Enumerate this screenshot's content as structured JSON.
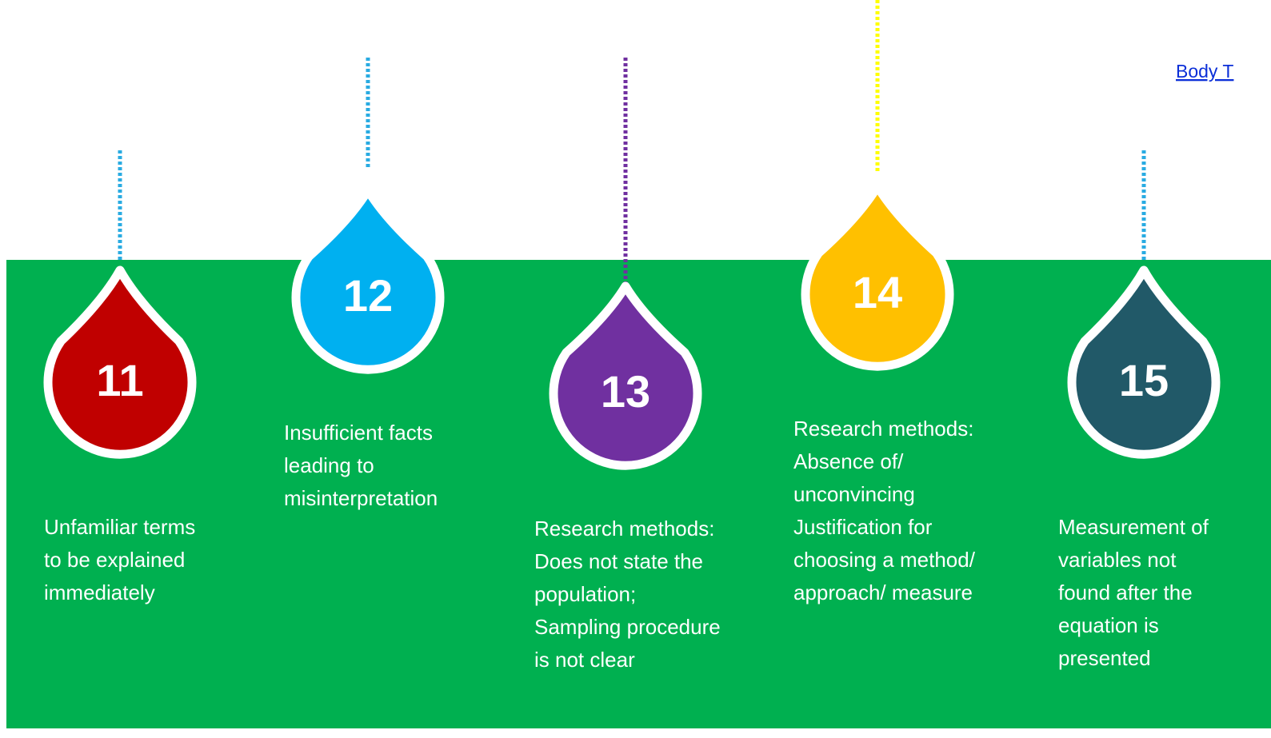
{
  "link": "Body T",
  "items": [
    {
      "number": "11",
      "lines": [
        "Unfamiliar terms",
        "to be explained",
        "immediately"
      ]
    },
    {
      "number": "12",
      "lines": [
        "Insufficient facts",
        "leading to",
        "misinterpretation"
      ]
    },
    {
      "number": "13",
      "lines": [
        "Research methods:",
        "Does not state the",
        "population;",
        "Sampling procedure",
        "is not clear"
      ]
    },
    {
      "number": "14",
      "lines": [
        "Research methods:",
        "Absence of/",
        "unconvincing",
        "Justification for",
        "choosing a method/",
        "approach/ measure"
      ]
    },
    {
      "number": "15",
      "lines": [
        "Measurement of",
        "variables not",
        "found after the",
        "equation is",
        "presented"
      ]
    }
  ]
}
